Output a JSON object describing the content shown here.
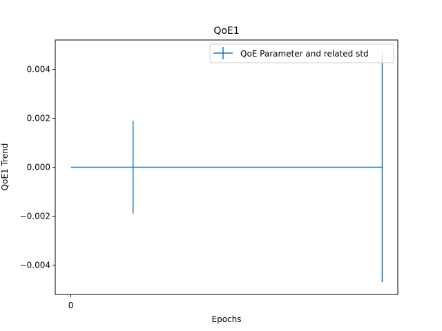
{
  "chart_data": {
    "type": "line",
    "title": "QoE1",
    "xlabel": "Epochs",
    "ylabel": "QoE1 Trend",
    "x": [
      0,
      1,
      5
    ],
    "series": [
      {
        "name": "QoE Parameter and related std",
        "values": [
          0.0,
          0.0,
          0.0
        ],
        "std": [
          0.0,
          0.0019,
          0.0047
        ],
        "color": "#1f77b4"
      }
    ],
    "xlim": [
      -0.25,
      5.25
    ],
    "ylim": [
      -0.0052,
      0.0052
    ],
    "x_ticks": [
      0
    ],
    "x_tick_labels": [
      "0"
    ],
    "y_ticks": [
      -0.004,
      -0.002,
      0.0,
      0.002,
      0.004
    ],
    "y_tick_labels": [
      "−0.004",
      "−0.002",
      "0.000",
      "0.002",
      "0.004"
    ],
    "grid": false,
    "legend_position": "upper-right"
  }
}
